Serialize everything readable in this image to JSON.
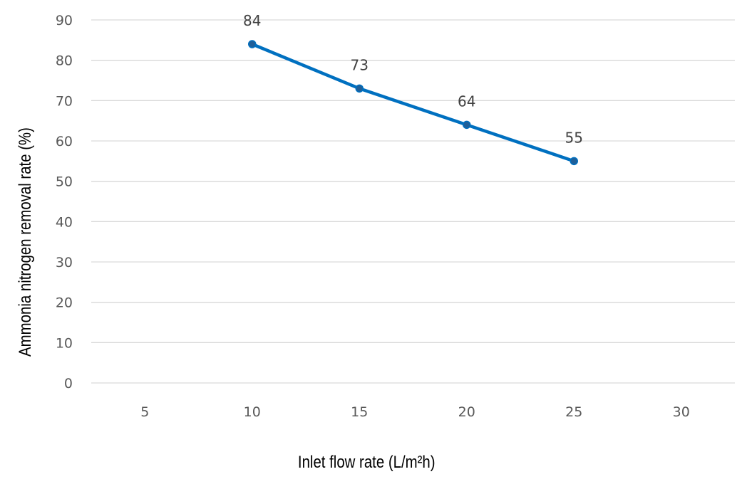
{
  "chart_data": {
    "type": "line",
    "categories": [
      "5",
      "10",
      "15",
      "20",
      "25",
      "30"
    ],
    "series": [
      {
        "values": [
          null,
          84,
          73,
          64,
          55,
          null
        ],
        "color": "#0070C0",
        "marker_color": "#1F5F99"
      }
    ],
    "data_labels": [
      "",
      "84",
      "73",
      "64",
      "55",
      ""
    ],
    "xlabel": "Inlet flow rate (L/m²h)",
    "ylabel": "Ammonia nitrogen removal rate (%)",
    "ylim": [
      0,
      90
    ],
    "yticks": [
      "0",
      "10",
      "20",
      "30",
      "40",
      "50",
      "60",
      "70",
      "80",
      "90"
    ],
    "grid": true,
    "legend": "none"
  }
}
